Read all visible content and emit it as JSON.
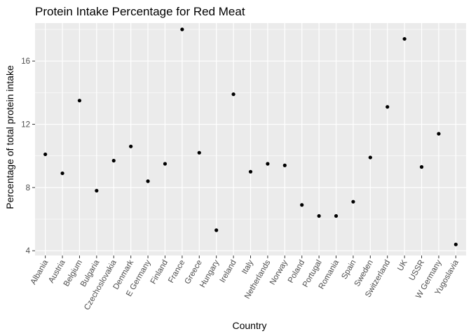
{
  "chart_data": {
    "type": "scatter",
    "title": "Protein Intake Percentage for Red Meat",
    "xlabel": "Country",
    "ylabel": "Percentage of total protein intake",
    "categories": [
      "Albania",
      "Austria",
      "Belgium",
      "Bulgaria",
      "Czechoslovakia",
      "Denmark",
      "E Germany",
      "Finland",
      "France",
      "Greece",
      "Hungary",
      "Ireland",
      "Italy",
      "Netherlands",
      "Norway",
      "Poland",
      "Portugal",
      "Romania",
      "Spain",
      "Sweden",
      "Switzerland",
      "UK",
      "USSR",
      "W Germany",
      "Yugoslavia"
    ],
    "values": [
      10.1,
      8.9,
      13.5,
      7.8,
      9.7,
      10.6,
      8.4,
      9.5,
      18.0,
      10.2,
      5.3,
      13.9,
      9.0,
      9.5,
      9.4,
      6.9,
      6.2,
      6.2,
      7.1,
      9.9,
      13.1,
      17.4,
      9.3,
      11.4,
      4.4
    ],
    "ylim": [
      3.7,
      18.4
    ],
    "yticks": [
      4,
      8,
      12,
      16
    ],
    "ytick_labels": [
      "4",
      "8",
      "12",
      "16"
    ],
    "grid": true,
    "panel_color": "#ebebeb",
    "grid_color": "#ffffff",
    "point_color": "#000000"
  }
}
